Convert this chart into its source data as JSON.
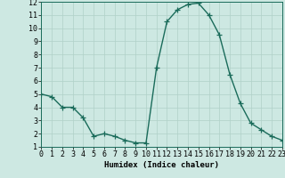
{
  "x": [
    0,
    1,
    2,
    3,
    4,
    5,
    6,
    7,
    8,
    9,
    10,
    11,
    12,
    13,
    14,
    15,
    16,
    17,
    18,
    19,
    20,
    21,
    22,
    23
  ],
  "y": [
    5.0,
    4.8,
    4.0,
    4.0,
    3.2,
    1.8,
    2.0,
    1.8,
    1.5,
    1.3,
    1.3,
    7.0,
    10.5,
    11.4,
    11.8,
    11.9,
    11.0,
    9.5,
    6.5,
    4.3,
    2.8,
    2.3,
    1.8,
    1.5
  ],
  "line_color": "#1a6b5a",
  "marker": "+",
  "bg_color": "#cde8e2",
  "grid_color": "#b0d0c8",
  "xlabel": "Humidex (Indice chaleur)",
  "ylim": [
    1,
    12
  ],
  "xlim": [
    0,
    23
  ],
  "yticks": [
    1,
    2,
    3,
    4,
    5,
    6,
    7,
    8,
    9,
    10,
    11,
    12
  ],
  "xticks": [
    0,
    1,
    2,
    3,
    4,
    5,
    6,
    7,
    8,
    9,
    10,
    11,
    12,
    13,
    14,
    15,
    16,
    17,
    18,
    19,
    20,
    21,
    22,
    23
  ],
  "xlabel_fontsize": 6.5,
  "tick_fontsize": 6.0,
  "line_width": 1.0,
  "marker_size": 4,
  "marker_edge_width": 0.9
}
